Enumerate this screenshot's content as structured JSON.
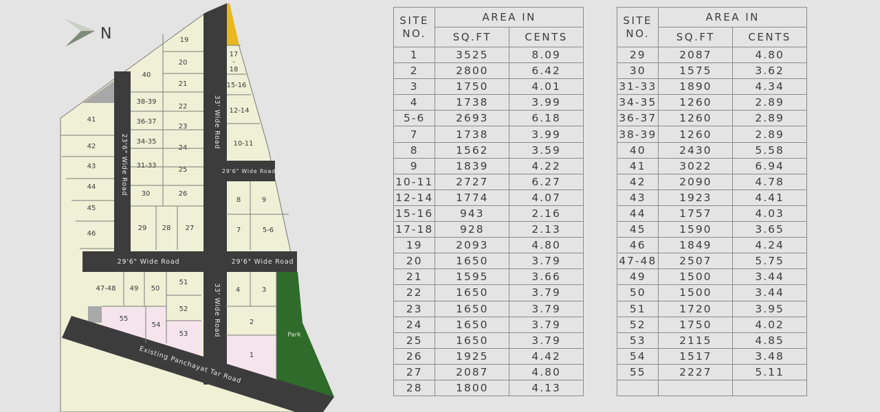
{
  "compass": {
    "label": "N",
    "icon": "north-arrow-icon"
  },
  "roads": {
    "road_23": "23'6\" Wide Road",
    "road_33_top": "33' Wide Road",
    "road_29_small": "29'6\" Wide Road",
    "road_29_left": "29'6\" Wide Road",
    "road_29_right": "29'6\" Wide Road",
    "road_33_bottom": "33' Wide Road",
    "panchayat": "Existing Panchayat Tar Road"
  },
  "park_label": "Park",
  "plots": [
    "1",
    "2",
    "3",
    "4",
    "5-6",
    "7",
    "8",
    "9",
    "10-11",
    "12-14",
    "15-16",
    "17\n-\n18",
    "19",
    "20",
    "21",
    "22",
    "23",
    "24",
    "25",
    "26",
    "27",
    "28",
    "29",
    "30",
    "31-33",
    "34-35",
    "36-37",
    "38-39",
    "40",
    "41",
    "42",
    "43",
    "44",
    "45",
    "46",
    "47-48",
    "49",
    "50",
    "51",
    "52",
    "53",
    "54",
    "55"
  ],
  "colors": {
    "plot": "#f0f0d6",
    "road": "#3c3c3c",
    "park": "#2f6b2a",
    "pink": "#f6e4ec",
    "yellow": "#e8b81f",
    "grey": "#a8a8a8",
    "background": "#e4e4e4"
  },
  "table_headers": {
    "site_no": "SITE NO.",
    "area_in": "AREA IN",
    "sqft": "SQ.FT",
    "cents": "CENTS"
  },
  "table_left": [
    [
      "1",
      "3525",
      "8.09"
    ],
    [
      "2",
      "2800",
      "6.42"
    ],
    [
      "3",
      "1750",
      "4.01"
    ],
    [
      "4",
      "1738",
      "3.99"
    ],
    [
      "5-6",
      "2693",
      "6.18"
    ],
    [
      "7",
      "1738",
      "3.99"
    ],
    [
      "8",
      "1562",
      "3.59"
    ],
    [
      "9",
      "1839",
      "4.22"
    ],
    [
      "10-11",
      "2727",
      "6.27"
    ],
    [
      "12-14",
      "1774",
      "4.07"
    ],
    [
      "15-16",
      "943",
      "2.16"
    ],
    [
      "17-18",
      "928",
      "2.13"
    ],
    [
      "19",
      "2093",
      "4.80"
    ],
    [
      "20",
      "1650",
      "3.79"
    ],
    [
      "21",
      "1595",
      "3.66"
    ],
    [
      "22",
      "1650",
      "3.79"
    ],
    [
      "23",
      "1650",
      "3.79"
    ],
    [
      "24",
      "1650",
      "3.79"
    ],
    [
      "25",
      "1650",
      "3.79"
    ],
    [
      "26",
      "1925",
      "4.42"
    ],
    [
      "27",
      "2087",
      "4.80"
    ],
    [
      "28",
      "1800",
      "4.13"
    ]
  ],
  "table_right": [
    [
      "29",
      "2087",
      "4.80"
    ],
    [
      "30",
      "1575",
      "3.62"
    ],
    [
      "31-33",
      "1890",
      "4.34"
    ],
    [
      "34-35",
      "1260",
      "2.89"
    ],
    [
      "36-37",
      "1260",
      "2.89"
    ],
    [
      "38-39",
      "1260",
      "2.89"
    ],
    [
      "40",
      "2430",
      "5.58"
    ],
    [
      "41",
      "3022",
      "6.94"
    ],
    [
      "42",
      "2090",
      "4.78"
    ],
    [
      "43",
      "1923",
      "4.41"
    ],
    [
      "44",
      "1757",
      "4.03"
    ],
    [
      "45",
      "1590",
      "3.65"
    ],
    [
      "46",
      "1849",
      "4.24"
    ],
    [
      "47-48",
      "2507",
      "5.75"
    ],
    [
      "49",
      "1500",
      "3.44"
    ],
    [
      "50",
      "1500",
      "3.44"
    ],
    [
      "51",
      "1720",
      "3.95"
    ],
    [
      "52",
      "1750",
      "4.02"
    ],
    [
      "53",
      "2115",
      "4.85"
    ],
    [
      "54",
      "1517",
      "3.48"
    ],
    [
      "55",
      "2227",
      "5.11"
    ],
    [
      "",
      "",
      ""
    ]
  ]
}
